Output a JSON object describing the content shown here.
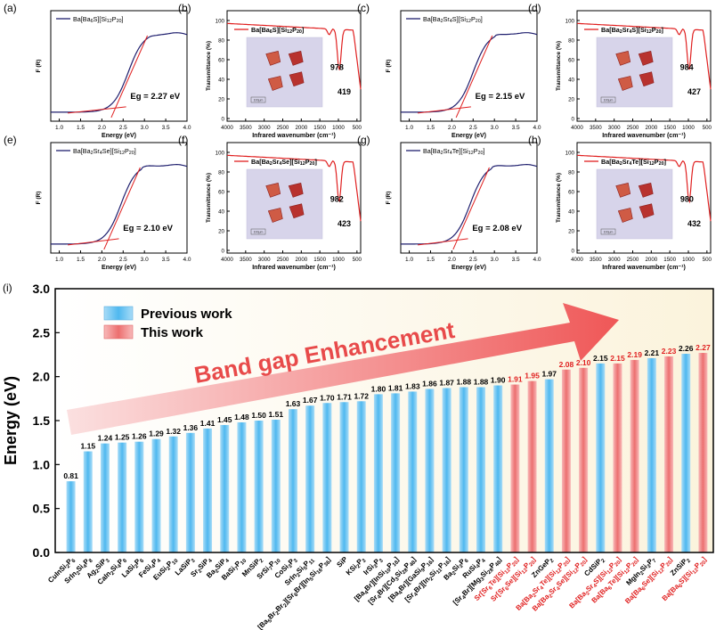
{
  "chart_data": [
    {
      "panel": "(a)",
      "type": "line",
      "compound": "Ba[Ba6S][Si12P20]",
      "xlabel": "Energy (eV)",
      "ylabel": "F (R)",
      "xticks": [
        "1.0",
        "1.5",
        "2.0",
        "2.5",
        "3.0",
        "3.5",
        "4.0"
      ],
      "xlim": [
        0.8,
        4.0
      ],
      "annotation": "Eg = 2.27 eV",
      "eg": 2.27
    },
    {
      "panel": "(b)",
      "type": "line",
      "compound": "Ba[Ba6S][Si12P20]",
      "xlabel": "Infrared wavenumber (cm⁻¹)",
      "ylabel": "Transmittance (%)",
      "xticks": [
        "4000",
        "3500",
        "3000",
        "2500",
        "2000",
        "1500",
        "1000",
        "500"
      ],
      "yticks": [
        "0",
        "20",
        "40",
        "60",
        "80",
        "100"
      ],
      "peaks": [
        "978",
        "419"
      ],
      "inset_scale": "100μm"
    },
    {
      "panel": "(c)",
      "type": "line",
      "compound": "Ba[Ba2Sr4S][Si12P20]",
      "xlabel": "Energy (eV)",
      "ylabel": "F (R)",
      "xticks": [
        "1.0",
        "1.5",
        "2.0",
        "2.5",
        "3.0",
        "3.5",
        "4.0"
      ],
      "xlim": [
        0.8,
        4.0
      ],
      "annotation": "Eg = 2.15 eV",
      "eg": 2.15
    },
    {
      "panel": "(d)",
      "type": "line",
      "compound": "Ba[Ba2Sr4S][Si12P20]",
      "xlabel": "Infrared wavenumber (cm⁻¹)",
      "ylabel": "Transmittance (%)",
      "xticks": [
        "4000",
        "3500",
        "3000",
        "2500",
        "2000",
        "1500",
        "1000",
        "500"
      ],
      "yticks": [
        "0",
        "20",
        "40",
        "60",
        "80",
        "100"
      ],
      "peaks": [
        "984",
        "427"
      ],
      "inset_scale": "100μm"
    },
    {
      "panel": "(e)",
      "type": "line",
      "compound": "Ba[Ba2Sr4Se][Si12P20]",
      "xlabel": "Energy (eV)",
      "ylabel": "F (R)",
      "xticks": [
        "1.0",
        "1.5",
        "2.0",
        "2.5",
        "3.0",
        "3.5",
        "4.0"
      ],
      "xlim": [
        0.8,
        4.0
      ],
      "annotation": "Eg = 2.10 eV",
      "eg": 2.1
    },
    {
      "panel": "(f)",
      "type": "line",
      "compound": "Ba[Ba2Sr4Se][Si12P20]",
      "xlabel": "Infrared wavenumber (cm⁻¹)",
      "ylabel": "Transmittance (%)",
      "xticks": [
        "4000",
        "3500",
        "3000",
        "2500",
        "2000",
        "1500",
        "1000",
        "500"
      ],
      "yticks": [
        "0",
        "20",
        "40",
        "60",
        "80",
        "100"
      ],
      "peaks": [
        "982",
        "423"
      ],
      "inset_scale": "100μm"
    },
    {
      "panel": "(g)",
      "type": "line",
      "compound": "Ba[Ba2Sr4Te][Si12P20]",
      "xlabel": "Energy (eV)",
      "ylabel": "F (R)",
      "xticks": [
        "1.0",
        "1.5",
        "2.0",
        "2.5",
        "3.0",
        "3.5",
        "4.0"
      ],
      "xlim": [
        0.8,
        4.0
      ],
      "annotation": "Eg = 2.08 eV",
      "eg": 2.08
    },
    {
      "panel": "(h)",
      "type": "line",
      "compound": "Ba[Ba2Sr4Te][Si12P20]",
      "xlabel": "Infrared wavenumber (cm⁻¹)",
      "ylabel": "Transmittance (%)",
      "xticks": [
        "4000",
        "3500",
        "3000",
        "2500",
        "2000",
        "1500",
        "1000",
        "500"
      ],
      "yticks": [
        "0",
        "20",
        "40",
        "60",
        "80",
        "100"
      ],
      "peaks": [
        "980",
        "432"
      ],
      "inset_scale": "100μm"
    },
    {
      "panel": "(i)",
      "type": "bar",
      "ylabel": "Energy (eV)",
      "ylim": [
        0.0,
        3.0
      ],
      "yticks": [
        "0.0",
        "0.5",
        "1.0",
        "1.5",
        "2.0",
        "2.5",
        "3.0"
      ],
      "arrow_text": "Band gap Enhancement",
      "legend": [
        {
          "name": "Previous work",
          "color": "#6ec6f2"
        },
        {
          "name": "This work",
          "color": "#f28b8b"
        }
      ],
      "categories": [
        "CuInSi2P6",
        "SrIn2Si4P8",
        "Ag2SiP3",
        "CaIn2Si4P8",
        "LaSi2P6",
        "FeSi4P4",
        "EuSi2P10",
        "LaSiP3",
        "Sr2SiP4",
        "Ba2SiP4",
        "BaSi7P10",
        "MnSiP2",
        "SrSi7P10",
        "CoSi3P3",
        "SrIn2Si5P11",
        "[Ba5Br2Br2][Sr6Br][In5Si16P36]",
        "SiP",
        "KSi2P3",
        "IrSi3P3",
        "[Ba4Br][InSi10P18]",
        "[Sr4Br][Cd3Si28P48]",
        "[Ba4Br][GaSi9P16]",
        "[Sr4Br][In2Si11P16]",
        "Ba2Si3P6",
        "RuSi4P4",
        "[Sr4Br][Mg3Si28P48]",
        "Sr[Sr6Te][Si12P20]",
        "Sr[Sr6Se][Si12P20]",
        "ZnGeP2",
        "Ba[Ba2Sr4Te][Si12P20]",
        "Ba[Ba2Sr4Se][Si12P20]",
        "CdSiP2",
        "Ba[Ba2Sr4S][Si12P20]",
        "Ba[Ba6Te][Si12P20]",
        "MgIn2Si3P7",
        "Ba[Ba6Se][Si12P20]",
        "ZnSiP2",
        "Ba[Ba6S][Si12P20]"
      ],
      "values": [
        0.81,
        1.15,
        1.24,
        1.25,
        1.26,
        1.29,
        1.32,
        1.36,
        1.41,
        1.45,
        1.48,
        1.5,
        1.51,
        1.63,
        1.67,
        1.7,
        1.71,
        1.72,
        1.8,
        1.81,
        1.83,
        1.86,
        1.87,
        1.88,
        1.88,
        1.9,
        1.91,
        1.95,
        1.97,
        2.08,
        2.1,
        2.15,
        2.15,
        2.19,
        2.21,
        2.23,
        2.26,
        2.27
      ],
      "labels": [
        "0.81",
        "1.15",
        "1.24",
        "1.25",
        "1.26",
        "1.29",
        "1.32",
        "1.36",
        "1.41",
        "1.45",
        "1.48",
        "1.50",
        "1.51",
        "1.63",
        "1.67",
        "1.70",
        "1.71",
        "1.72",
        "1.80",
        "1.81",
        "1.83",
        "1.86",
        "1.87",
        "1.88",
        "1.88",
        "1.90",
        "1.91",
        "1.95",
        "1.97",
        "2.08",
        "2.10",
        "2.15",
        "2.15",
        "2.19",
        "2.21",
        "2.23",
        "2.26",
        "2.27"
      ],
      "this_work": [
        false,
        false,
        false,
        false,
        false,
        false,
        false,
        false,
        false,
        false,
        false,
        false,
        false,
        false,
        false,
        false,
        false,
        false,
        false,
        false,
        false,
        false,
        false,
        false,
        false,
        false,
        true,
        true,
        false,
        true,
        true,
        false,
        true,
        true,
        false,
        true,
        false,
        true
      ]
    }
  ]
}
